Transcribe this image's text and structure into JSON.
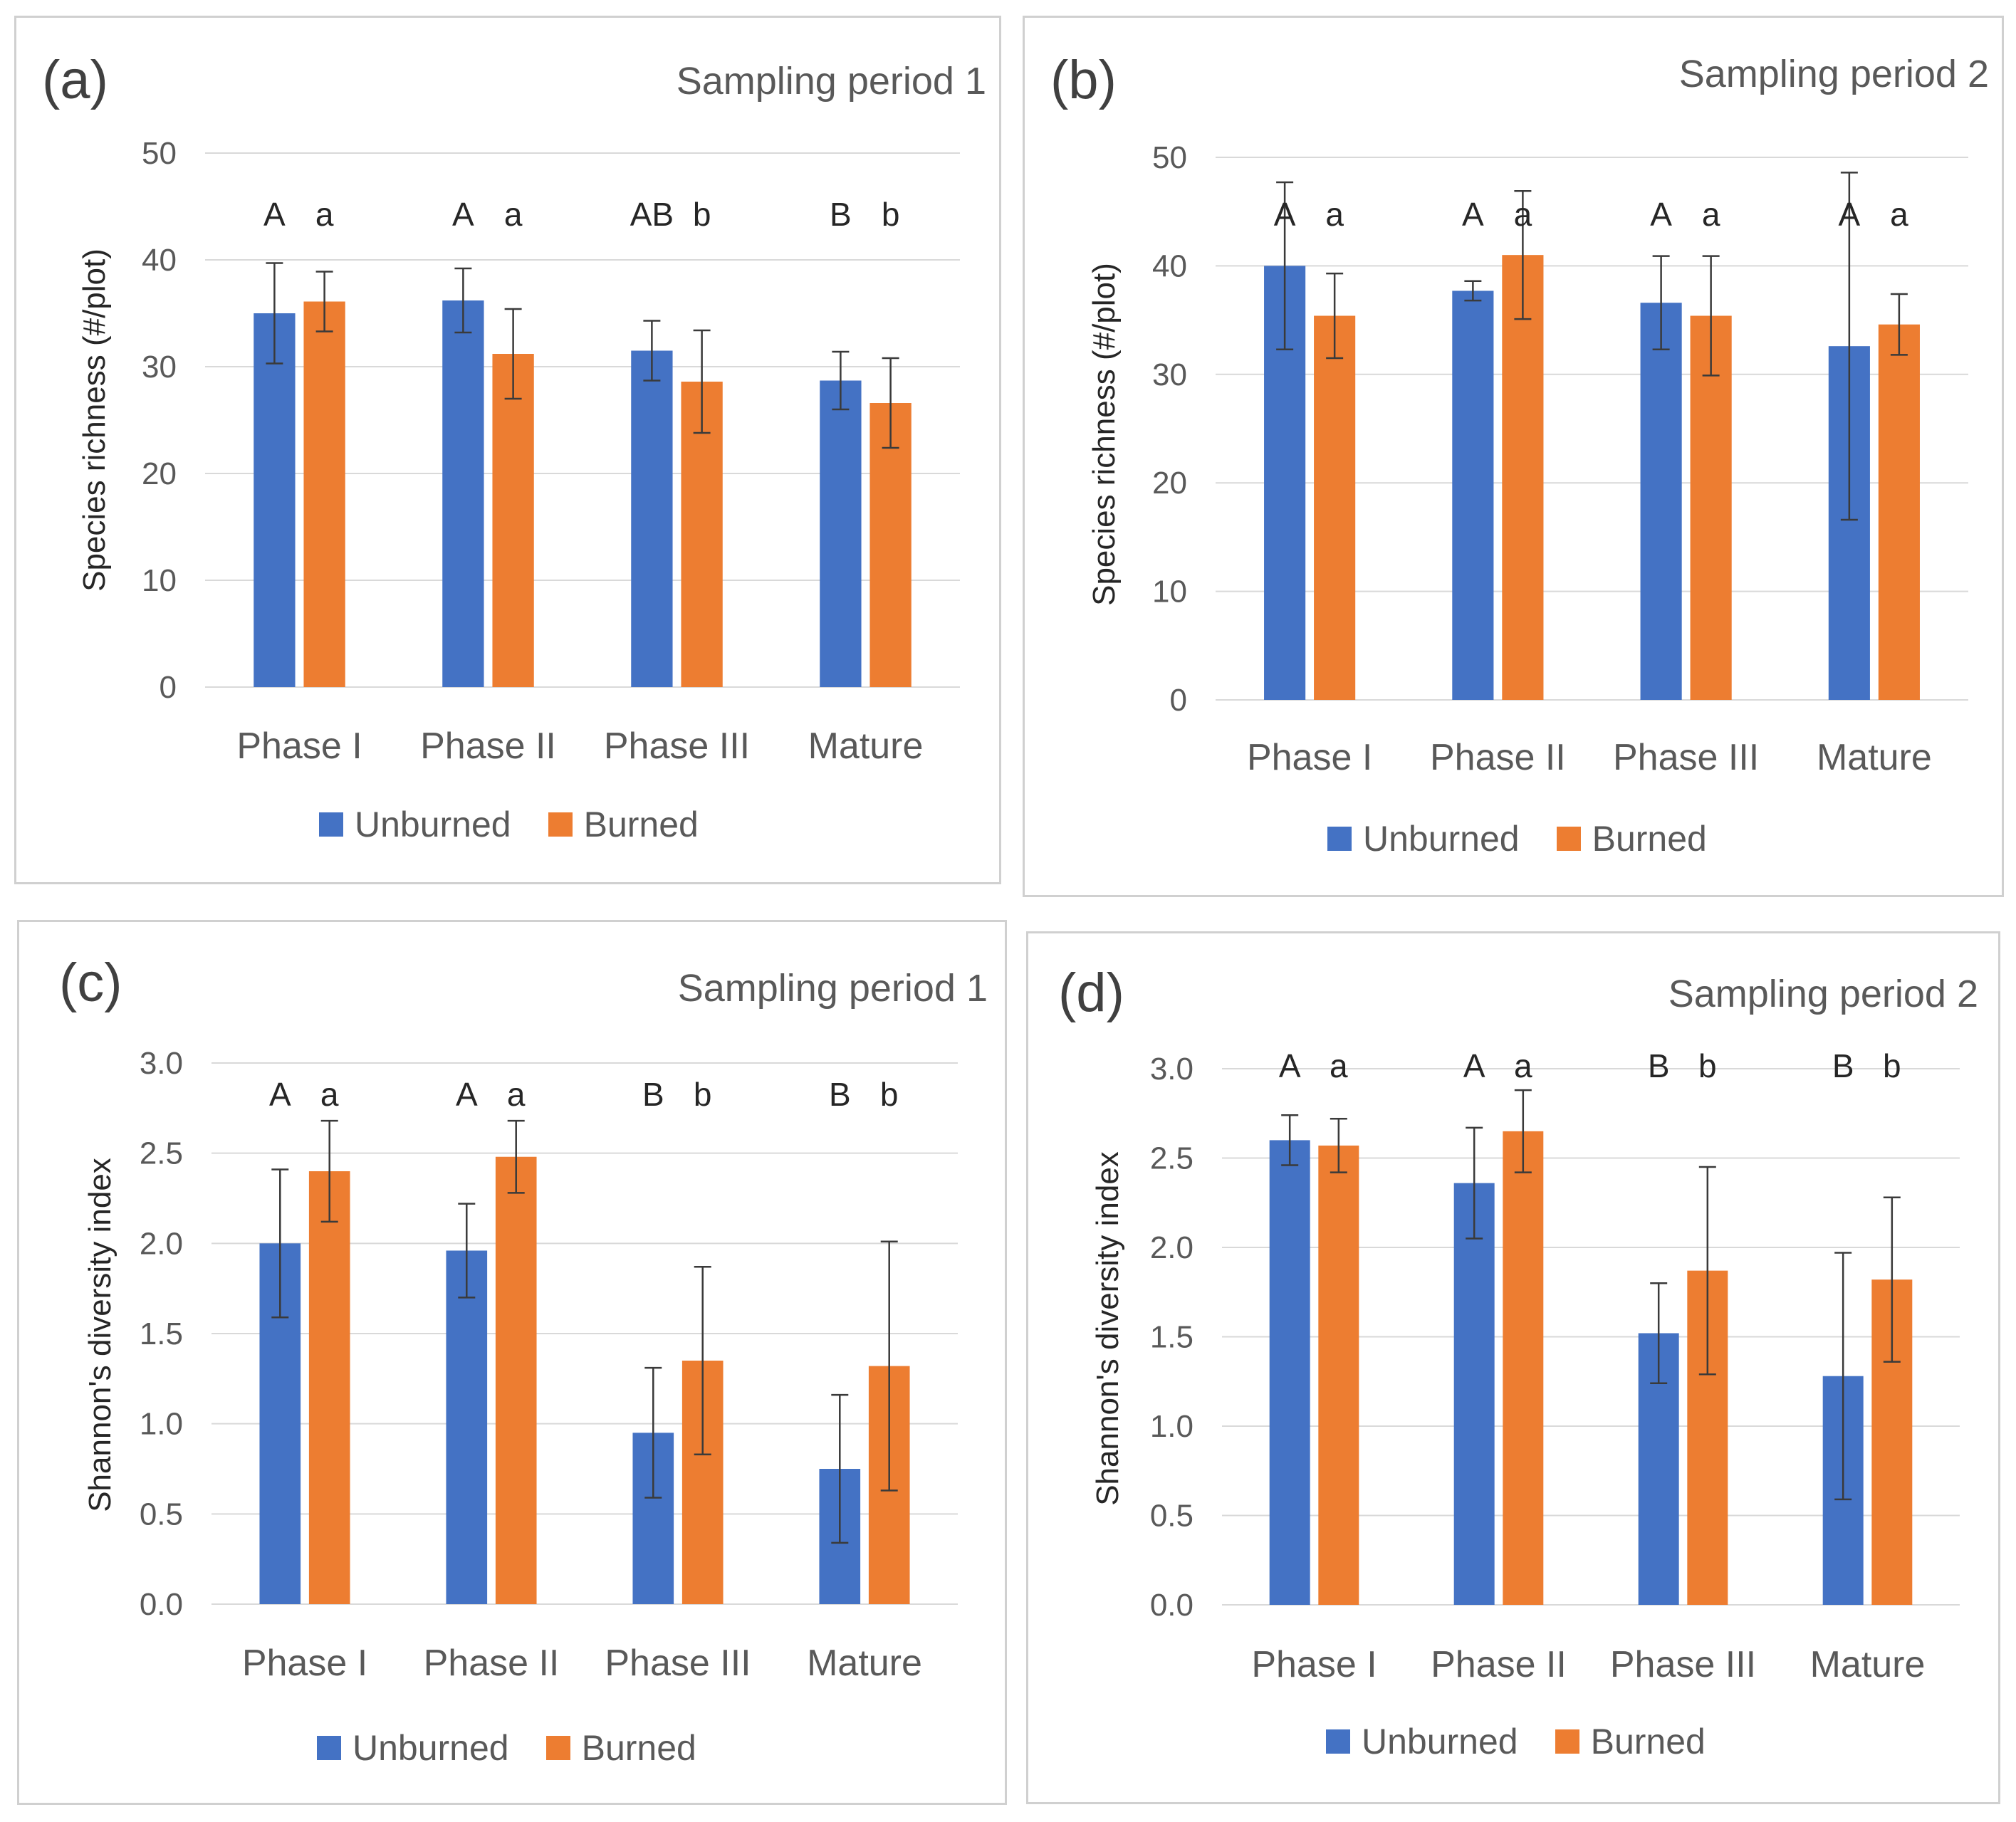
{
  "figure": {
    "colors": {
      "unburned": "#4472C4",
      "burned": "#ED7D31",
      "grid": "#D9D9D9",
      "axis_text": "#595959",
      "error_bar": "#3a3a3a"
    },
    "legend": {
      "unburned": "Unburned",
      "burned": "Burned"
    }
  },
  "chart_data": [
    {
      "id": "a",
      "type": "bar",
      "panel_label": "(a)",
      "title": "Sampling period 1",
      "ylabel": "Species richness (#/plot)",
      "xlabel": "",
      "ylim": [
        0,
        50
      ],
      "yticks": [
        "0",
        "10",
        "20",
        "30",
        "40",
        "50"
      ],
      "categories": [
        "Phase I",
        "Phase II",
        "Phase III",
        "Mature"
      ],
      "series": [
        {
          "name": "Unburned",
          "values": [
            35,
            36.2,
            31.5,
            28.7
          ],
          "errors": [
            4.7,
            3.0,
            2.8,
            2.7
          ],
          "letters": [
            "A",
            "A",
            "AB",
            "B"
          ]
        },
        {
          "name": "Burned",
          "values": [
            36.1,
            31.2,
            28.6,
            26.6
          ],
          "errors": [
            2.8,
            4.2,
            4.8,
            4.2
          ],
          "letters": [
            "a",
            "a",
            "b",
            "b"
          ]
        }
      ]
    },
    {
      "id": "b",
      "type": "bar",
      "panel_label": "(b)",
      "title": "Sampling period 2",
      "ylabel": "Species richness (#/plot)",
      "xlabel": "",
      "ylim": [
        0,
        50
      ],
      "yticks": [
        "0",
        "10",
        "20",
        "30",
        "40",
        "50"
      ],
      "categories": [
        "Phase I",
        "Phase II",
        "Phase III",
        "Mature"
      ],
      "series": [
        {
          "name": "Unburned",
          "values": [
            40,
            37.7,
            36.6,
            32.6
          ],
          "errors": [
            7.7,
            0.9,
            4.3,
            16
          ],
          "letters": [
            "A",
            "A",
            "A",
            "A"
          ]
        },
        {
          "name": "Burned",
          "values": [
            35.4,
            41,
            35.4,
            34.6
          ],
          "errors": [
            3.9,
            5.9,
            5.5,
            2.8
          ],
          "letters": [
            "a",
            "a",
            "a",
            "a"
          ]
        }
      ]
    },
    {
      "id": "c",
      "type": "bar",
      "panel_label": "(c)",
      "title": "Sampling period 1",
      "ylabel": "Shannon's diversity index",
      "xlabel": "",
      "ylim": [
        0,
        3
      ],
      "yticks": [
        "0.0",
        "0.5",
        "1.0",
        "1.5",
        "2.0",
        "2.5",
        "3.0"
      ],
      "categories": [
        "Phase I",
        "Phase II",
        "Phase III",
        "Mature"
      ],
      "series": [
        {
          "name": "Unburned",
          "values": [
            2.0,
            1.96,
            0.95,
            0.75
          ],
          "errors": [
            0.41,
            0.26,
            0.36,
            0.41
          ],
          "letters": [
            "A",
            "A",
            "B",
            "B"
          ]
        },
        {
          "name": "Burned",
          "values": [
            2.4,
            2.48,
            1.35,
            1.32
          ],
          "errors": [
            0.28,
            0.2,
            0.52,
            0.69
          ],
          "letters": [
            "a",
            "a",
            "b",
            "b"
          ]
        }
      ]
    },
    {
      "id": "d",
      "type": "bar",
      "panel_label": "(d)",
      "title": "Sampling period 2",
      "ylabel": "Shannon's diversity index",
      "xlabel": "",
      "ylim": [
        0,
        3
      ],
      "yticks": [
        "0.0",
        "0.5",
        "1.0",
        "1.5",
        "2.0",
        "2.5",
        "3.0"
      ],
      "categories": [
        "Phase I",
        "Phase II",
        "Phase III",
        "Mature"
      ],
      "series": [
        {
          "name": "Unburned",
          "values": [
            2.6,
            2.36,
            1.52,
            1.28
          ],
          "errors": [
            0.14,
            0.31,
            0.28,
            0.69
          ],
          "letters": [
            "A",
            "A",
            "B",
            "B"
          ]
        },
        {
          "name": "Burned",
          "values": [
            2.57,
            2.65,
            1.87,
            1.82
          ],
          "errors": [
            0.15,
            0.23,
            0.58,
            0.46
          ],
          "letters": [
            "a",
            "a",
            "b",
            "b"
          ]
        }
      ]
    }
  ]
}
